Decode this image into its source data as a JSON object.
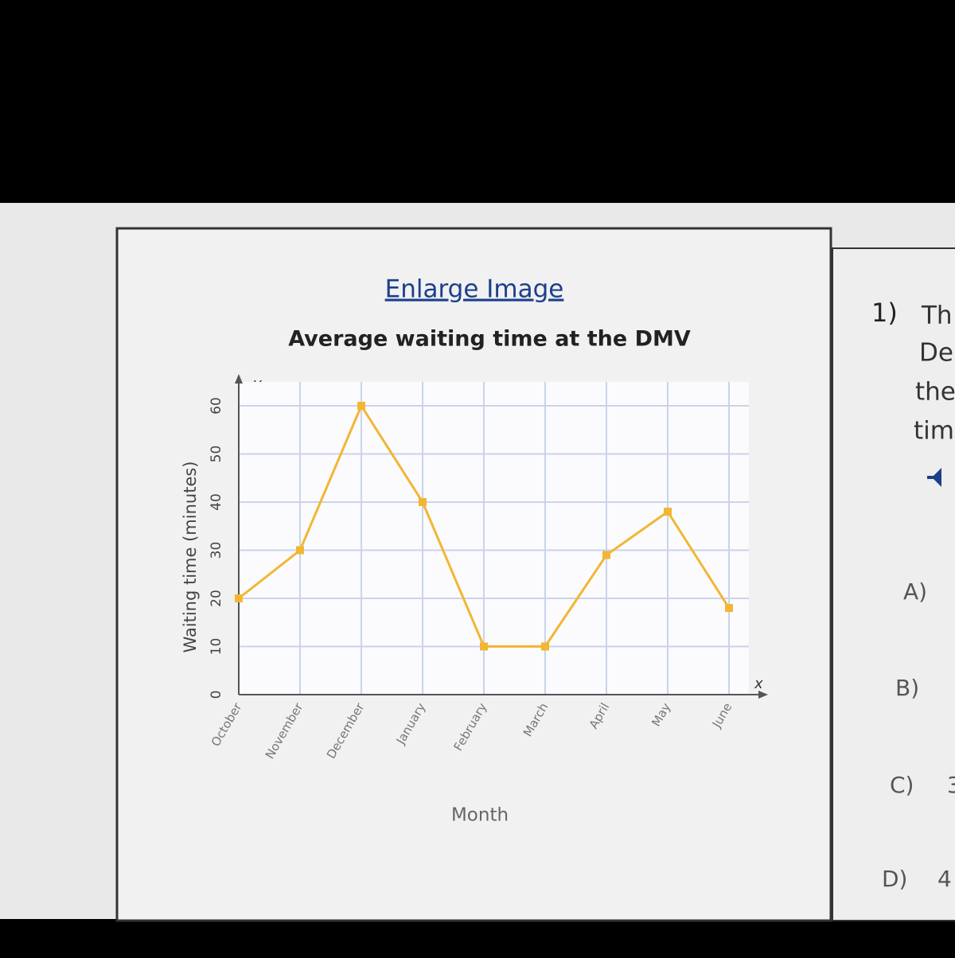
{
  "link": "Enlarge Image",
  "chart_data": {
    "type": "line",
    "title": "Average waiting time at the DMV",
    "categories": [
      "October",
      "November",
      "December",
      "January",
      "February",
      "March",
      "April",
      "May",
      "June"
    ],
    "series": [
      {
        "name": "Waiting time",
        "color": "#f2b632",
        "values": [
          20,
          30,
          60,
          40,
          10,
          10,
          29,
          38,
          18
        ]
      }
    ],
    "ylim": [
      0,
      60
    ],
    "yticks": [
      0,
      10,
      20,
      30,
      40,
      50,
      60
    ],
    "grid": true,
    "xlabel": "Month",
    "ylabel": "Waiting time (minutes)",
    "x_axis_letter": "x",
    "y_axis_letter": "y"
  },
  "question": {
    "number": "1)",
    "lines": [
      "Th",
      "De",
      "the",
      "tim"
    ],
    "options": [
      {
        "letter": "A)",
        "text": ""
      },
      {
        "letter": "B)",
        "text": ""
      },
      {
        "letter": "C)",
        "text": "3"
      },
      {
        "letter": "D)",
        "text": "4"
      }
    ]
  }
}
